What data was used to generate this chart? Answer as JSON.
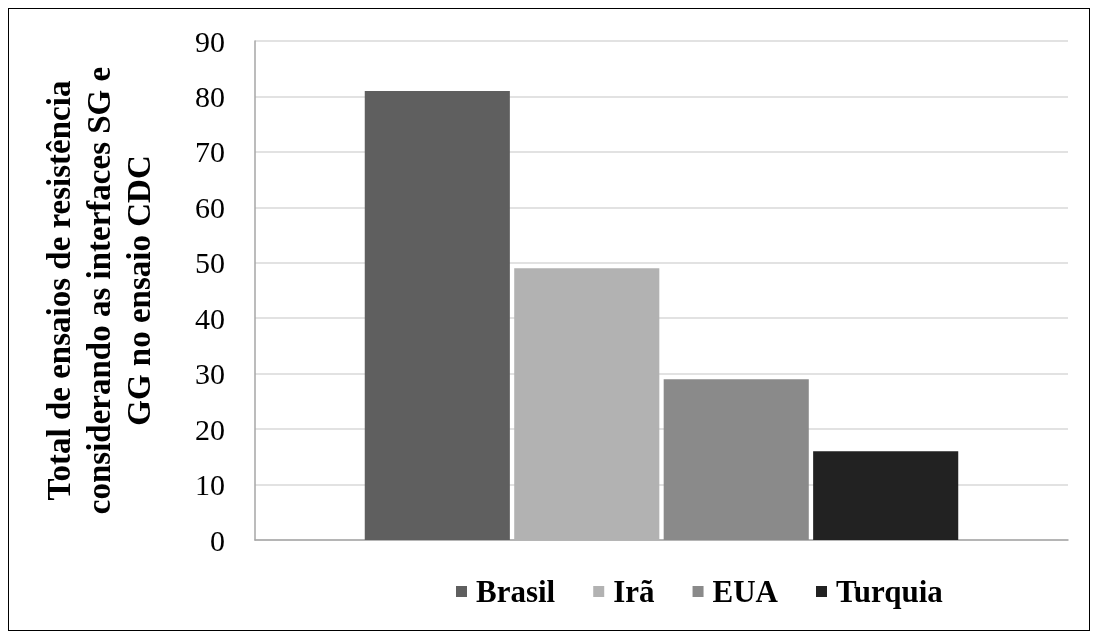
{
  "chart_data": {
    "type": "bar",
    "ylabel": "Total de ensaios de resistência considerando as interfaces SG e GG no ensaio CDC",
    "categories": [
      null
    ],
    "series": [
      {
        "name": "Brasil",
        "color": "#5f5f5f",
        "values": [
          81
        ]
      },
      {
        "name": "Irã",
        "color": "#b2b2b2",
        "values": [
          49
        ]
      },
      {
        "name": "EUA",
        "color": "#8a8a8a",
        "values": [
          29
        ]
      },
      {
        "name": "Turquia",
        "color": "#222222",
        "values": [
          16
        ]
      }
    ],
    "ylim": [
      0,
      90
    ],
    "yticks": [
      0,
      10,
      20,
      30,
      40,
      50,
      60,
      70,
      80,
      90
    ],
    "grid": "y",
    "legend": "bottom"
  }
}
